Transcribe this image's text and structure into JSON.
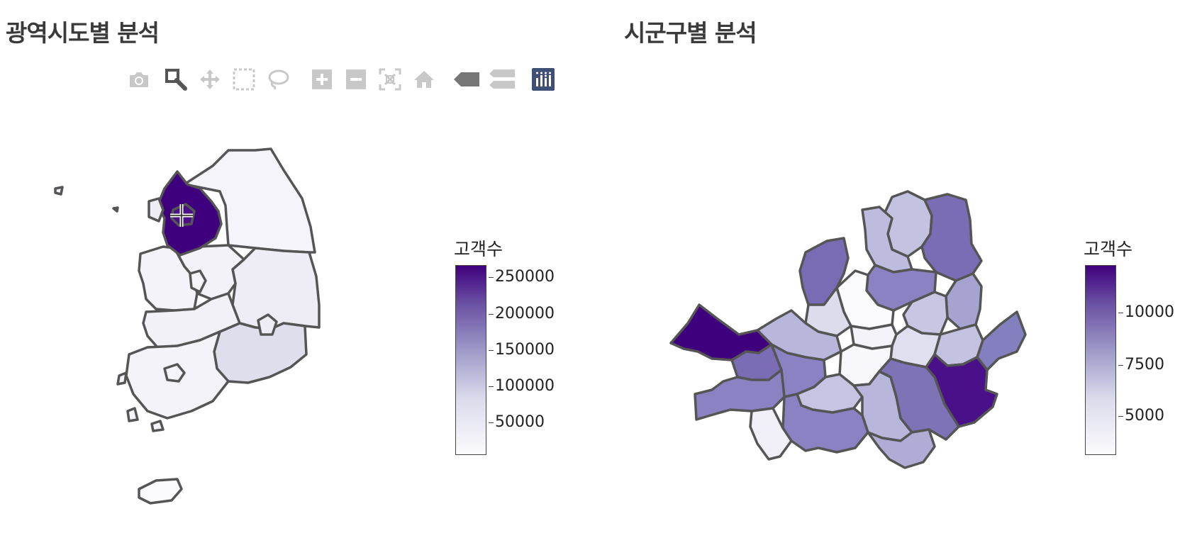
{
  "titles": {
    "left": "광역시도별 분석",
    "right": "시군구별 분석"
  },
  "modebar": {
    "buttons": [
      "camera-icon",
      "zoom-icon",
      "pan-icon",
      "box-select-icon",
      "lasso-select-icon",
      "zoom-in-icon",
      "zoom-out-icon",
      "autoscale-icon",
      "reset-axes-icon",
      "hover-closest-icon",
      "hover-compare-icon",
      "plotly-logo-icon"
    ],
    "active": "zoom-icon"
  },
  "colors": {
    "scale_low": "#fcfbfd",
    "scale_mid": "#9e9ac8",
    "scale_high": "#3f007d",
    "border": "#555555",
    "modebar_icon": "#c8c8c8",
    "modebar_active": "#555555",
    "logo_bg": "#3f4f75"
  },
  "colorbar_left": {
    "title": "고객수",
    "ticks": [
      "250000",
      "200000",
      "150000",
      "100000",
      "50000"
    ]
  },
  "colorbar_right": {
    "title": "고객수",
    "ticks": [
      "10000",
      "7500",
      "5000"
    ]
  }
}
